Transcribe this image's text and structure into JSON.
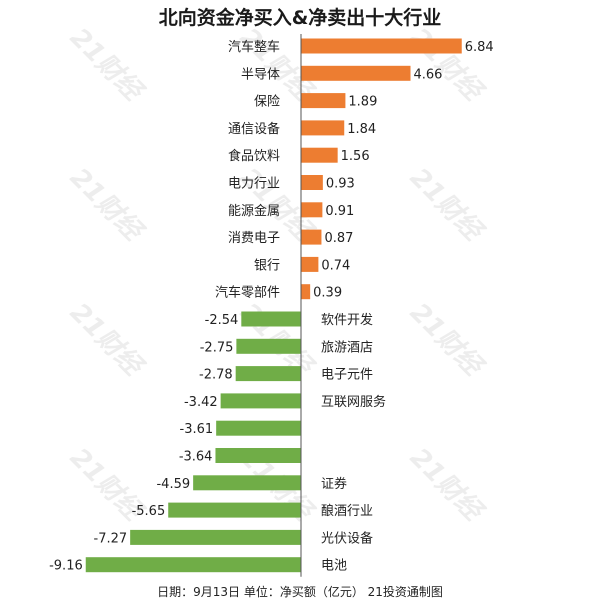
{
  "title": "北向资金净买入&净卖出十大行业",
  "footer": "日期：9月13日 单位：净买额（亿元） 21投资通制图",
  "watermark": "21财经",
  "colors": {
    "positive": "#ED7D31",
    "negative": "#70AD47",
    "axis": "#555555",
    "text": "#222222"
  },
  "chart_data": {
    "type": "bar",
    "orientation": "horizontal",
    "title": "北向资金净买入&净卖出十大行业",
    "categories": [
      "汽车整车",
      "半导体",
      "保险",
      "通信设备",
      "食品饮料",
      "电力行业",
      "能源金属",
      "消费电子",
      "银行",
      "汽车零部件",
      "软件开发",
      "旅游酒店",
      "电子元件",
      "互联网服务",
      "",
      "",
      "证券",
      "酿酒行业",
      "光伏设备",
      "电池"
    ],
    "values": [
      6.84,
      4.66,
      1.89,
      1.84,
      1.56,
      0.93,
      0.91,
      0.87,
      0.74,
      0.39,
      -2.54,
      -2.75,
      -2.78,
      -3.42,
      -3.61,
      -3.64,
      -4.59,
      -5.65,
      -7.27,
      -9.16
    ],
    "xlim": [
      -9.16,
      6.84
    ],
    "grid": false,
    "legend": "none"
  }
}
